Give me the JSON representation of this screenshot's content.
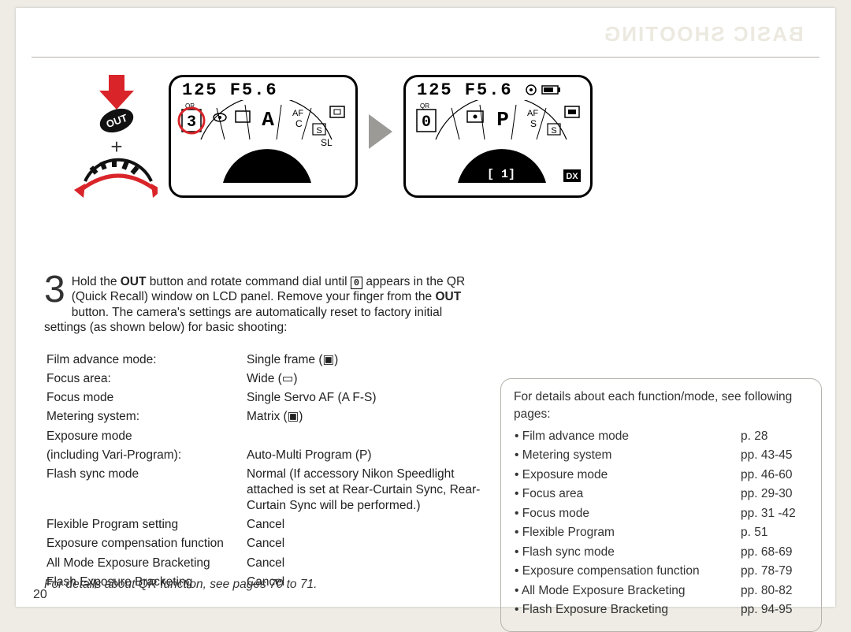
{
  "watermark": "BASIC SHOOTING",
  "step": {
    "number": "3",
    "text_pre": "Hold the ",
    "btn1": "OUT",
    "text_mid1": " button and rotate command dial until ",
    "qr_glyph": "0",
    "text_mid2": " appears in the QR (Quick Recall) window on LCD panel. Remove your finger from the ",
    "btn2": "OUT",
    "text_end": " button. The camera's settings are automatically reset to factory initial settings (as shown below) for basic shooting:"
  },
  "lcd_left": {
    "top": "125  F5.6",
    "qr_label": "QR",
    "qr_val": "3",
    "mode": "A",
    "af": "AF",
    "c": "C",
    "s": "S",
    "sl": "SL"
  },
  "lcd_right": {
    "top": "125  F5.6",
    "qr_label": "QR",
    "qr_val": "0",
    "mode": "P",
    "af": "AF",
    "s": "S",
    "dx": "DX",
    "counter": "[  1]"
  },
  "settings": [
    {
      "l": "Film advance mode:",
      "r": "Single frame (▣)"
    },
    {
      "l": "Focus area:",
      "r": "Wide (▭)"
    },
    {
      "l": "Focus mode",
      "r": "Single Servo AF (A F-S)"
    },
    {
      "l": "Metering system:",
      "r": "Matrix (▣)"
    },
    {
      "l": "Exposure mode",
      "r": ""
    },
    {
      "l": "(including Vari-Program):",
      "r": "Auto-Multi Program (P)"
    },
    {
      "l": "Flash sync mode",
      "r": "Normal (If accessory Nikon Speedlight attached is set at Rear-Curtain Sync, Rear-Curtain Sync will be performed.)"
    },
    {
      "l": "Flexible Program setting",
      "r": "Cancel"
    },
    {
      "l": "Exposure compensation function",
      "r": "Cancel"
    },
    {
      "l": "All Mode Exposure Bracketing",
      "r": "Cancel"
    },
    {
      "l": "Flash Exposure Bracketing",
      "r": "Cancel"
    }
  ],
  "qr_note": "For details about QR function, see pages 70 to 71.",
  "page_no": "20",
  "side": {
    "intro": "For details about each function/mode, see following pages:",
    "rows": [
      {
        "f": "Film advance mode",
        "p": "p. 28"
      },
      {
        "f": "Metering system",
        "p": "pp. 43-45"
      },
      {
        "f": "Exposure mode",
        "p": "pp. 46-60"
      },
      {
        "f": "Focus area",
        "p": "pp. 29-30"
      },
      {
        "f": "Focus mode",
        "p": "pp. 31 -42"
      },
      {
        "f": "Flexible Program",
        "p": "p. 51"
      },
      {
        "f": "Flash sync mode",
        "p": "pp. 68-69"
      },
      {
        "f": "Exposure compensation function",
        "p": "pp. 78-79"
      },
      {
        "f": "All Mode Exposure Bracketing",
        "p": "pp. 80-82"
      },
      {
        "f": "Flash Exposure Bracketing",
        "p": "pp. 94-95"
      }
    ]
  },
  "colors": {
    "red": "#d9252a",
    "grey_tri": "#9b9a97"
  }
}
